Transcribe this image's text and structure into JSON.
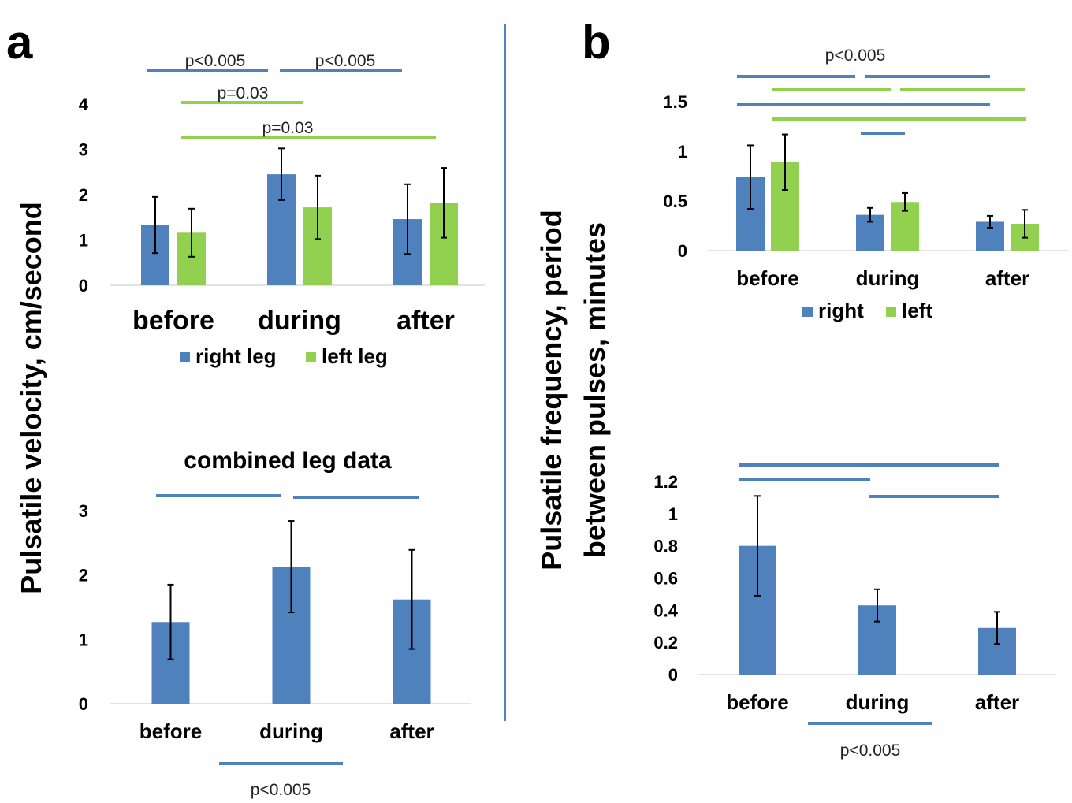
{
  "panels": {
    "a": "a",
    "b": "b"
  },
  "colors": {
    "right": "#4f81bd",
    "left": "#92d050",
    "axis": "#d9d9d9",
    "divider": "#4f81bd",
    "error": "#000000"
  },
  "chart_data": [
    {
      "id": "a_top",
      "type": "bar",
      "ylabel": "Pulsatile velocity, cm/second",
      "categories": [
        "before",
        "during",
        "after"
      ],
      "series": [
        {
          "name": "right leg",
          "values": [
            1.33,
            2.45,
            1.46
          ],
          "errors": [
            0.62,
            0.57,
            0.77
          ]
        },
        {
          "name": "left leg",
          "values": [
            1.16,
            1.72,
            1.82
          ],
          "errors": [
            0.53,
            0.7,
            0.77
          ]
        }
      ],
      "ylim": [
        0,
        4
      ],
      "yticks": [
        0,
        1,
        2,
        3,
        4
      ],
      "legend": "bottom",
      "annotations": [
        {
          "text": "p<0.005",
          "color": "right"
        },
        {
          "text": "p<0.005",
          "color": "right"
        },
        {
          "text": "p=0.03",
          "color": "left"
        },
        {
          "text": "p=0.03",
          "color": "left"
        }
      ]
    },
    {
      "id": "a_bottom",
      "type": "bar",
      "title": "combined leg data",
      "categories": [
        "before",
        "during",
        "after"
      ],
      "series": [
        {
          "values": [
            1.27,
            2.13,
            1.62
          ],
          "errors": [
            0.58,
            0.71,
            0.77
          ]
        }
      ],
      "ylim": [
        0,
        3
      ],
      "yticks": [
        0,
        1,
        2,
        3
      ],
      "annotations": [
        {
          "text": "p<0.005"
        }
      ]
    },
    {
      "id": "b_top",
      "type": "bar",
      "ylabel": "Pulsatile frequency, period between pulses, minutes",
      "categories": [
        "before",
        "during",
        "after"
      ],
      "series": [
        {
          "name": "right",
          "values": [
            0.74,
            0.36,
            0.29
          ],
          "errors": [
            0.32,
            0.07,
            0.06
          ]
        },
        {
          "name": "left",
          "values": [
            0.89,
            0.49,
            0.27
          ],
          "errors": [
            0.28,
            0.09,
            0.14
          ]
        }
      ],
      "ylim": [
        0,
        1.5
      ],
      "yticks": [
        "0",
        "0.5",
        "1",
        "1.5"
      ],
      "legend": "bottom",
      "annotations": [
        {
          "text": "p<0.005"
        }
      ]
    },
    {
      "id": "b_bottom",
      "type": "bar",
      "categories": [
        "before",
        "during",
        "after"
      ],
      "series": [
        {
          "values": [
            0.8,
            0.43,
            0.29
          ],
          "errors": [
            0.31,
            0.1,
            0.1
          ]
        }
      ],
      "ylim": [
        0,
        1.2
      ],
      "yticks": [
        "0",
        "0.2",
        "0.4",
        "0.6",
        "0.8",
        "1",
        "1.2"
      ],
      "annotations": [
        {
          "text": "p<0.005"
        }
      ]
    }
  ]
}
